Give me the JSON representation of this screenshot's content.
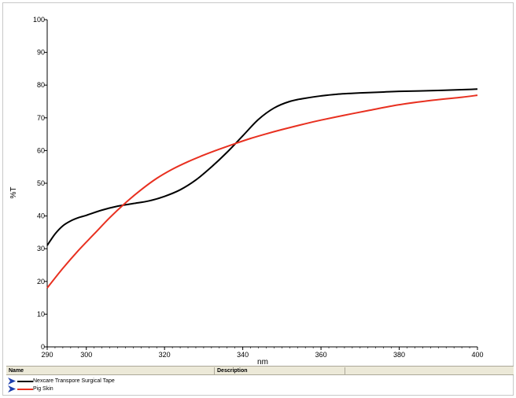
{
  "chart_data": {
    "type": "line",
    "title": "",
    "xlabel": "nm",
    "ylabel": "%T",
    "xlim": [
      290,
      400
    ],
    "ylim": [
      0,
      100
    ],
    "x_ticks": [
      290,
      300,
      320,
      340,
      360,
      380,
      400
    ],
    "y_ticks": [
      0,
      10,
      20,
      30,
      40,
      50,
      60,
      70,
      80,
      90,
      100
    ],
    "grid": false,
    "legend_position": "bottom",
    "series": [
      {
        "name": "Nexcare Transpore Surgical Tape",
        "color": "#000000",
        "x": [
          290,
          292,
          294,
          296,
          298,
          300,
          304,
          308,
          312,
          316,
          320,
          324,
          328,
          332,
          336,
          340,
          344,
          348,
          352,
          356,
          360,
          364,
          370,
          376,
          380,
          388,
          396,
          400
        ],
        "y": [
          31,
          34.5,
          37,
          38.5,
          39.5,
          40.2,
          41.8,
          43,
          43.8,
          44.6,
          46,
          48,
          51,
          55,
          59.5,
          64.5,
          69.5,
          73,
          75,
          76,
          76.7,
          77.2,
          77.6,
          77.9,
          78.1,
          78.3,
          78.6,
          78.8
        ]
      },
      {
        "name": "Pig Skin",
        "color": "#e83020",
        "x": [
          290,
          294,
          298,
          302,
          306,
          310,
          314,
          318,
          322,
          326,
          330,
          334,
          338,
          342,
          346,
          350,
          356,
          360,
          366,
          372,
          380,
          388,
          396,
          400
        ],
        "y": [
          18,
          24,
          29.5,
          34.5,
          39.5,
          44,
          48,
          51.5,
          54.3,
          56.6,
          58.6,
          60.4,
          62.1,
          63.7,
          65.1,
          66.4,
          68.2,
          69.3,
          70.8,
          72.2,
          74,
          75.3,
          76.3,
          76.9
        ]
      }
    ]
  },
  "legend_table": {
    "header_name": "Name",
    "header_description": "Description"
  }
}
